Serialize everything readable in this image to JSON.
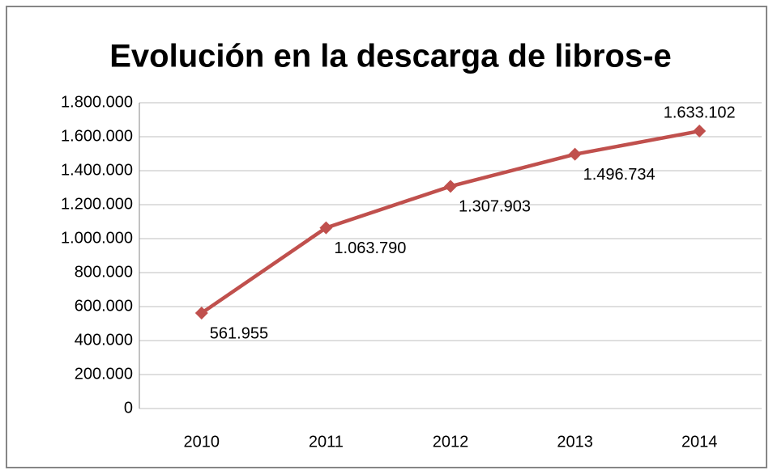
{
  "chart_data": {
    "type": "line",
    "title": "Evolución en la descarga de libros-e",
    "categories": [
      "2010",
      "2011",
      "2012",
      "2013",
      "2014"
    ],
    "values": [
      561955,
      1063790,
      1307903,
      1496734,
      1633102
    ],
    "value_labels": [
      "561.955",
      "1.063.790",
      "1.307.903",
      "1.496.734",
      "1.633.102"
    ],
    "color": "#c0504d",
    "ylim": [
      0,
      1800000
    ],
    "yticks": [
      0,
      {
        "value": 200000,
        "label": "200.000"
      },
      {
        "value": 400000,
        "label": "400.000"
      },
      {
        "value": 600000,
        "label": "600.000"
      },
      {
        "value": 800000,
        "label": "800.000"
      },
      {
        "value": 1000000,
        "label": "1.000.000"
      },
      {
        "value": 1200000,
        "label": "1.200.000"
      },
      {
        "value": 1400000,
        "label": "1.400.000"
      },
      {
        "value": 1600000,
        "label": "1.600.000"
      },
      {
        "value": 1800000,
        "label": "1.800.000"
      }
    ],
    "grid": true
  }
}
